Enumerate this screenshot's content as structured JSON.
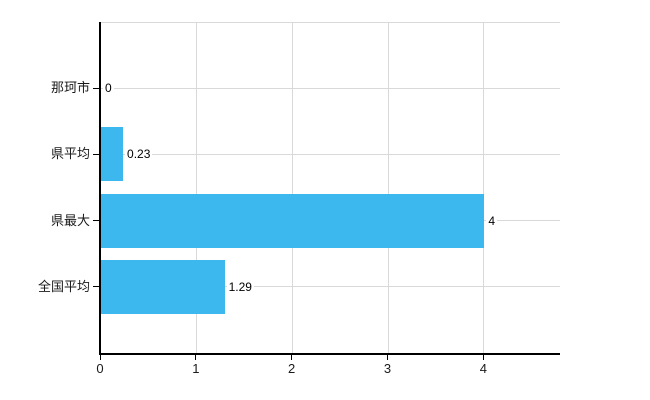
{
  "chart_data": {
    "type": "bar",
    "orientation": "horizontal",
    "title": "",
    "categories": [
      "那珂市",
      "県平均",
      "県最大",
      "全国平均"
    ],
    "values": [
      0,
      0.23,
      4,
      1.29
    ],
    "value_labels": [
      "0",
      "0.23",
      "4",
      "1.29"
    ],
    "xlabel": "",
    "ylabel": "",
    "xlim": [
      0,
      4.8
    ],
    "xticks": [
      0,
      1,
      2,
      3,
      4
    ],
    "xtick_labels": [
      "0",
      "1",
      "2",
      "3",
      "4"
    ],
    "grid": true,
    "legend": false,
    "colors": {
      "bar": "#3cb8ee",
      "grid": "#d9d9d9",
      "axis": "#000000",
      "text": "#1a1a1a",
      "value_text": "#000000",
      "background": "#ffffff"
    }
  }
}
